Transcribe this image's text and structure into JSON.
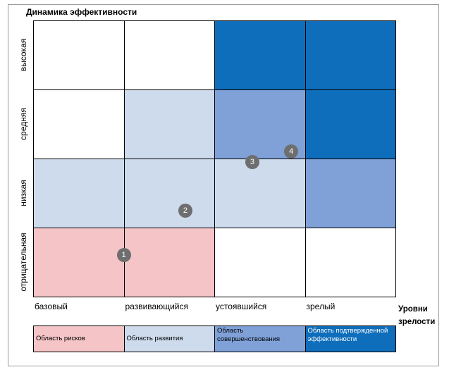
{
  "title": "Динамика эффективности",
  "y_levels": [
    "отрицательная",
    "низкая",
    "средняя",
    "высокая"
  ],
  "x_levels": [
    "базовый",
    "развивающийся",
    "устоявшийся",
    "зрелый"
  ],
  "x_axis_title": "Уровни зрелости",
  "colors": {
    "risk": "#f5c4c7",
    "development": "#cddbec",
    "improvement": "#7fa1d8",
    "proven": "#0f6ebb",
    "none": "#ffffff",
    "marker": "#6e6e6e"
  },
  "cells": [
    [
      "risk",
      "risk",
      "none",
      "none"
    ],
    [
      "development",
      "development",
      "development",
      "improvement"
    ],
    [
      "none",
      "development",
      "improvement",
      "proven"
    ],
    [
      "none",
      "none",
      "proven",
      "proven"
    ]
  ],
  "markers": [
    {
      "label": "1",
      "x_level": 1.0,
      "y_level": 0.6
    },
    {
      "label": "2",
      "x_level": 1.68,
      "y_level": 1.25
    },
    {
      "label": "3",
      "x_level": 2.42,
      "y_level": 1.95
    },
    {
      "label": "4",
      "x_level": 2.85,
      "y_level": 2.1
    }
  ],
  "legend": [
    {
      "key": "risk",
      "label": "Область рисков"
    },
    {
      "key": "development",
      "label": "Область развития"
    },
    {
      "key": "improvement",
      "label": "Область совершенствования"
    },
    {
      "key": "proven",
      "label": "Область подтвержденной эффективности"
    }
  ]
}
